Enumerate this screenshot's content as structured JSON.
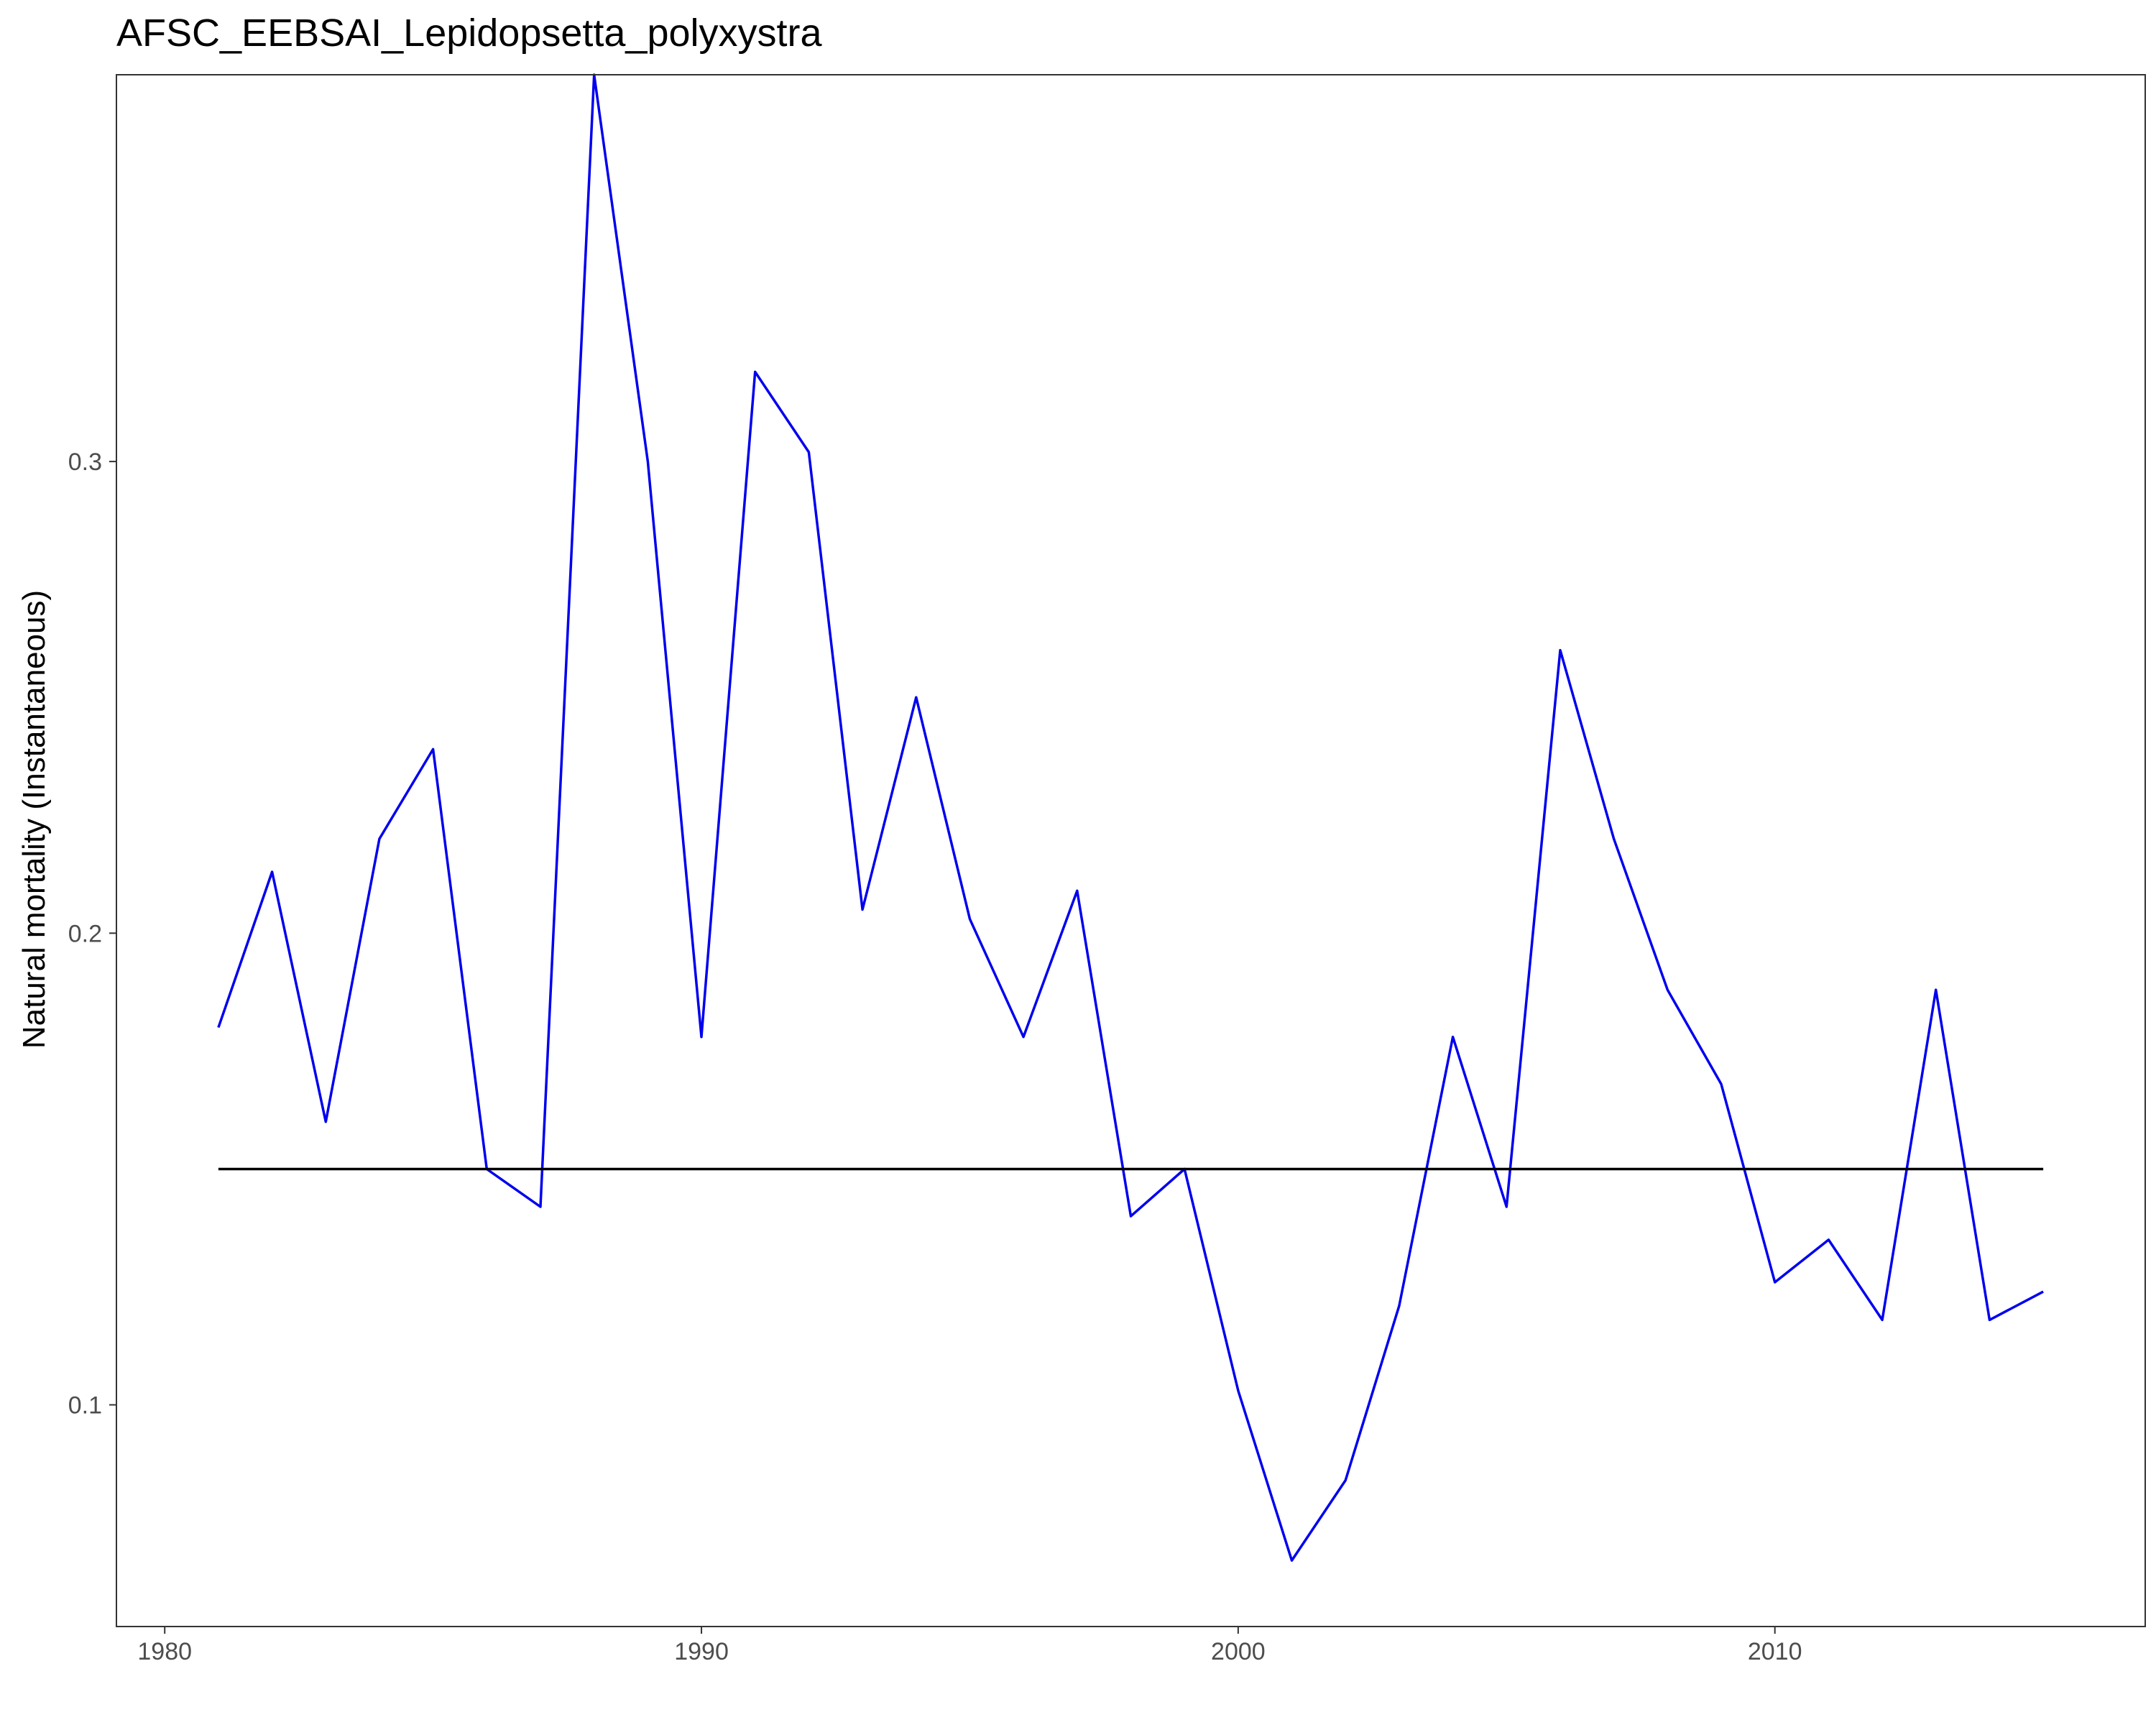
{
  "chart_data": {
    "type": "line",
    "title": "AFSC_EEBSAI_Lepidopsetta_polyxystra",
    "xlabel": "",
    "ylabel": "Natural mortality (Instantaneous)",
    "xlim": [
      1979.1,
      2016.9
    ],
    "ylim": [
      0.053,
      0.382
    ],
    "x_ticks": [
      1980,
      1990,
      2000,
      2010
    ],
    "y_ticks": [
      0.1,
      0.2,
      0.3
    ],
    "x_tick_labels": [
      "1980",
      "1990",
      "2000",
      "2010"
    ],
    "y_tick_labels": [
      "0.1",
      "0.2",
      "0.3"
    ],
    "grid": false,
    "legend": "none",
    "series": [
      {
        "color": "#0000ee",
        "x": [
          1981,
          1982,
          1983,
          1984,
          1985,
          1986,
          1987,
          1988,
          1989,
          1990,
          1991,
          1992,
          1993,
          1994,
          1995,
          1996,
          1997,
          1998,
          1999,
          2000,
          2001,
          2002,
          2003,
          2004,
          2005,
          2006,
          2007,
          2008,
          2009,
          2010,
          2011,
          2012,
          2013,
          2014,
          2015
        ],
        "y": [
          0.18,
          0.213,
          0.16,
          0.22,
          0.239,
          0.15,
          0.142,
          0.382,
          0.3,
          0.178,
          0.319,
          0.302,
          0.205,
          0.25,
          0.203,
          0.178,
          0.209,
          0.14,
          0.15,
          0.103,
          0.067,
          0.084,
          0.121,
          0.178,
          0.142,
          0.26,
          0.22,
          0.188,
          0.168,
          0.126,
          0.135,
          0.118,
          0.188,
          0.118,
          0.124
        ]
      },
      {
        "color": "#000000",
        "x": [
          1981,
          2015
        ],
        "y": [
          0.15,
          0.15
        ]
      }
    ]
  }
}
